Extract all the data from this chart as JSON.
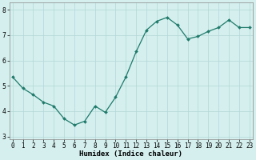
{
  "x": [
    0,
    1,
    2,
    3,
    4,
    5,
    6,
    7,
    8,
    9,
    10,
    11,
    12,
    13,
    14,
    15,
    16,
    17,
    18,
    19,
    20,
    21,
    22,
    23
  ],
  "y": [
    5.35,
    4.9,
    4.65,
    4.35,
    4.2,
    3.7,
    3.45,
    3.6,
    4.2,
    3.95,
    4.55,
    5.35,
    6.35,
    7.2,
    7.55,
    7.7,
    7.4,
    6.85,
    6.95,
    7.15,
    7.3,
    7.6,
    7.3,
    7.3
  ],
  "line_color": "#1f7a6a",
  "marker": "D",
  "markersize": 2.0,
  "linewidth": 0.9,
  "bg_color": "#d4efee",
  "grid_color": "#b2d8d5",
  "xlabel": "Humidex (Indice chaleur)",
  "xlabel_fontsize": 6.5,
  "tick_fontsize": 5.5,
  "ylim": [
    2.9,
    8.3
  ],
  "yticks": [
    3,
    4,
    5,
    6,
    7,
    8
  ],
  "xticks": [
    0,
    1,
    2,
    3,
    4,
    5,
    6,
    7,
    8,
    9,
    10,
    11,
    12,
    13,
    14,
    15,
    16,
    17,
    18,
    19,
    20,
    21,
    22,
    23
  ],
  "xlim": [
    -0.3,
    23.3
  ],
  "spine_color": "#888888",
  "spine_linewidth": 0.5
}
